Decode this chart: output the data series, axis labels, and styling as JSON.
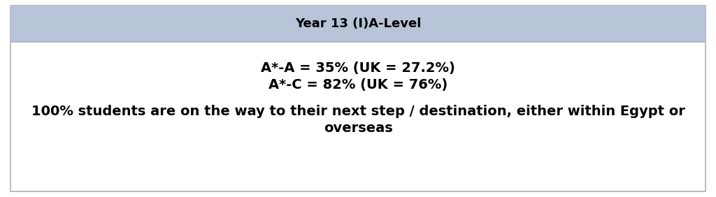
{
  "header_text": "Year 13 (I)A-Level",
  "header_bg_color": "#b8c4d8",
  "header_text_color": "#000000",
  "header_fontsize": 13,
  "body_bg_color": "#ffffff",
  "border_color": "#b0b0b0",
  "line1": "A*-A = 35% (UK = 27.2%)",
  "line2": "A*-C = 82% (UK = 76%)",
  "stats_fontsize": 14,
  "stats_text_color": "#000000",
  "body_line1": "100% students are on the way to their next step / destination, either within Egypt or",
  "body_line2": "overseas",
  "body_fontsize": 14,
  "body_text_color": "#000000",
  "fig_width": 10.24,
  "fig_height": 2.82
}
